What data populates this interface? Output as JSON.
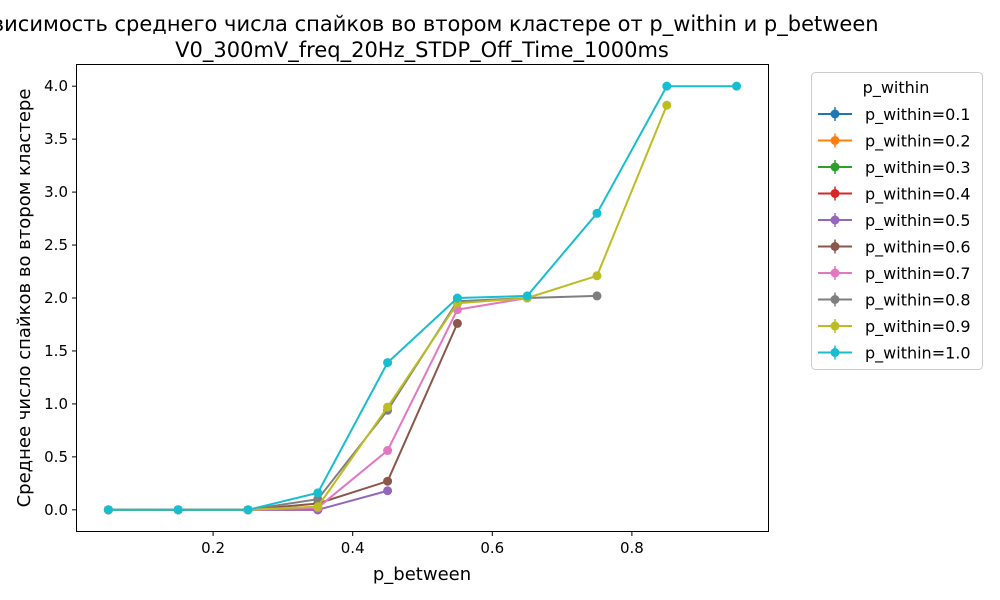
{
  "chart_data": {
    "type": "line",
    "title": "Зависимость среднего числа спайков во втором кластере от p_within и p_between",
    "subtitle": "V0_300mV_freq_20Hz_STDP_Off_Time_1000ms",
    "xlabel": "p_between",
    "ylabel": "Среднее число спайков во втором кластере",
    "xlim": [
      0.005,
      0.995
    ],
    "ylim": [
      -0.2,
      4.2
    ],
    "xticks": [
      "0.2",
      "0.4",
      "0.6",
      "0.8"
    ],
    "yticks": [
      "0.0",
      "0.5",
      "1.0",
      "1.5",
      "2.0",
      "2.5",
      "3.0",
      "3.5",
      "4.0"
    ],
    "grid": false,
    "legend": {
      "title": "p_within",
      "placement": "outside-right"
    },
    "series": [
      {
        "name": "p_within=0.1",
        "color": "#1f77b4",
        "x": [
          0.05,
          0.15,
          0.25
        ],
        "y": [
          0,
          0,
          0
        ]
      },
      {
        "name": "p_within=0.2",
        "color": "#ff7f0e",
        "x": [
          0.05,
          0.15,
          0.25
        ],
        "y": [
          0,
          0,
          0
        ]
      },
      {
        "name": "p_within=0.3",
        "color": "#2ca02c",
        "x": [
          0.05,
          0.15,
          0.25
        ],
        "y": [
          0,
          0,
          0
        ]
      },
      {
        "name": "p_within=0.4",
        "color": "#d62728",
        "x": [
          0.05,
          0.15,
          0.25,
          0.35
        ],
        "y": [
          0,
          0,
          0,
          0
        ]
      },
      {
        "name": "p_within=0.5",
        "color": "#9467bd",
        "x": [
          0.05,
          0.15,
          0.25,
          0.35,
          0.45
        ],
        "y": [
          0,
          0,
          0,
          0,
          0.18
        ]
      },
      {
        "name": "p_within=0.6",
        "color": "#8c564b",
        "x": [
          0.05,
          0.15,
          0.25,
          0.35,
          0.45,
          0.55
        ],
        "y": [
          0,
          0,
          0,
          0.06,
          0.27,
          1.76
        ]
      },
      {
        "name": "p_within=0.7",
        "color": "#e377c2",
        "x": [
          0.05,
          0.15,
          0.25,
          0.35,
          0.45,
          0.55,
          0.65
        ],
        "y": [
          0,
          0,
          0,
          0.02,
          0.56,
          1.89,
          2.0
        ]
      },
      {
        "name": "p_within=0.8",
        "color": "#7f7f7f",
        "x": [
          0.05,
          0.15,
          0.25,
          0.35,
          0.45,
          0.55,
          0.65,
          0.75
        ],
        "y": [
          0,
          0,
          0,
          0.1,
          0.94,
          1.97,
          2.0,
          2.02
        ]
      },
      {
        "name": "p_within=0.9",
        "color": "#bcbd22",
        "x": [
          0.05,
          0.15,
          0.25,
          0.35,
          0.45,
          0.55,
          0.65,
          0.75,
          0.85
        ],
        "y": [
          0,
          0,
          0,
          0.03,
          0.97,
          1.95,
          2.0,
          2.21,
          3.82
        ]
      },
      {
        "name": "p_within=1.0",
        "color": "#17becf",
        "x": [
          0.05,
          0.15,
          0.25,
          0.35,
          0.45,
          0.55,
          0.65,
          0.75,
          0.85,
          0.95
        ],
        "y": [
          0,
          0,
          0,
          0.16,
          1.39,
          2.0,
          2.02,
          2.8,
          4.0,
          4.0
        ]
      }
    ]
  }
}
